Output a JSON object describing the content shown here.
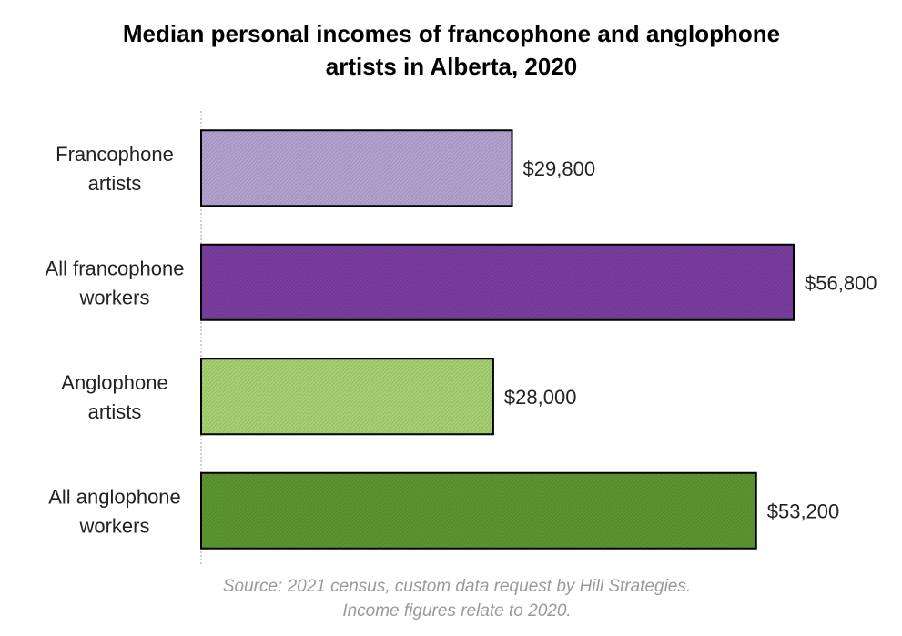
{
  "chart_data": {
    "type": "bar",
    "orientation": "horizontal",
    "title_lines": [
      "Median personal incomes of francophone and anglophone",
      "artists in Alberta, 2020"
    ],
    "categories": [
      [
        "Francophone",
        "artists"
      ],
      [
        "All francophone",
        "workers"
      ],
      [
        "Anglophone",
        "artists"
      ],
      [
        "All anglophone",
        "workers"
      ]
    ],
    "values": [
      29800,
      56800,
      28000,
      53200
    ],
    "value_labels": [
      "$29,800",
      "$56,800",
      "$28,000",
      "$53,200"
    ],
    "colors": [
      "#b3a2cf",
      "#7a3d9e",
      "#a6d071",
      "#5c9631"
    ],
    "xlim": [
      0,
      60000
    ],
    "grid": false,
    "legend": "none"
  },
  "source_lines": [
    "Source: 2021 census, custom data request by Hill Strategies.",
    "Income figures relate to 2020."
  ]
}
